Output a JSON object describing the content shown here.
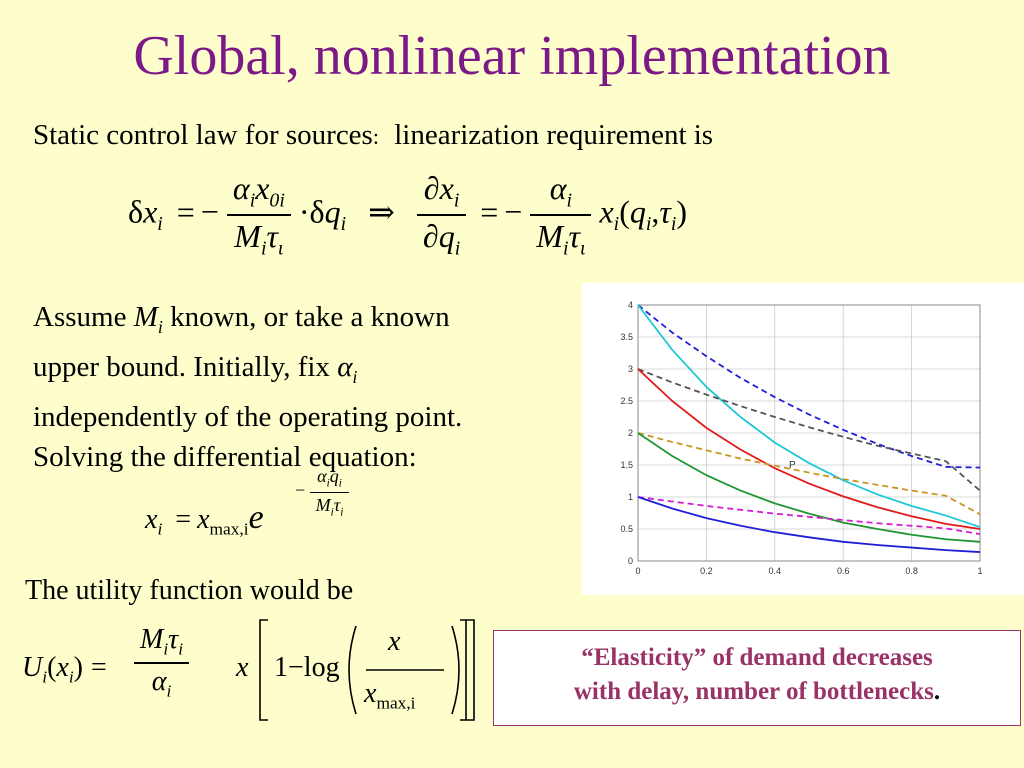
{
  "title": "Global, nonlinear implementation",
  "subtitle_left": "Static control law for sources",
  "subtitle_colon": ":",
  "subtitle_right": "linearization requirement is",
  "eq1": {
    "lhs_delta": "δ",
    "x": "x",
    "i": "i",
    "eq": "=",
    "minus": "−",
    "alpha": "α",
    "x0": "x",
    "zero_i": "0i",
    "M": "M",
    "tau": "τ",
    "tau_sub": "ι",
    "dot": "·",
    "delta_q": "δ",
    "q": "q",
    "implies": "⇒",
    "partial": "∂",
    "paren_open": "(",
    "comma": ",",
    "paren_close": ")"
  },
  "para": {
    "l1_a": "Assume ",
    "l1_M": "M",
    "l1_i": "i",
    "l1_b": " known, or take a known",
    "l2_a": "upper bound. Initially, fix ",
    "l2_alpha": "α",
    "l2_i": "i",
    "l3": "independently of the operating point.",
    "l4": "Solving the differential equation:"
  },
  "eq2": {
    "x": "x",
    "i": "i",
    "eq": "=",
    "xmax": "x",
    "max_i": "max,i",
    "e": "e",
    "minus": "−",
    "alpha_i": "α",
    "q_i": "q",
    "M_i": "M",
    "tau_i": "τ"
  },
  "utility_label": "The utility function would be",
  "eq3": {
    "U": "U",
    "i": "i",
    "paren_open": "(",
    "x": "x",
    "paren_close": ")",
    "eq": "=",
    "M": "M",
    "tau": "τ",
    "alpha": "α",
    "one_minus": "1−",
    "log": "log",
    "x_num": "x",
    "x_max": "x",
    "max_i": "max,i"
  },
  "callout": {
    "line1": "“Elasticity” of demand decreases",
    "line2": "with delay, number of bottlenecks",
    "period": "."
  },
  "colors": {
    "title": "#7b1a87",
    "callout": "#993366",
    "background": "#fefdcc"
  },
  "chart_data": {
    "type": "line",
    "xlim": [
      0,
      1
    ],
    "ylim": [
      0,
      4
    ],
    "x_ticks": [
      "0",
      "0.2",
      "0.4",
      "0.6",
      "0.8",
      "1"
    ],
    "y_ticks": [
      "0",
      "0.5",
      "1",
      "1.5",
      "2",
      "2.5",
      "3",
      "3.5",
      "4"
    ],
    "grid": true,
    "annotation": {
      "text": "P",
      "x": 0.43,
      "y": 1.39
    },
    "series": [
      {
        "color": "#1f1fd6",
        "dash": "6,4",
        "x": [
          0,
          0.1,
          0.2,
          0.3,
          0.4,
          0.5,
          0.6,
          0.7,
          0.8,
          0.9,
          1
        ],
        "y": [
          4,
          3.57,
          3.2,
          2.86,
          2.56,
          2.29,
          2.05,
          1.83,
          1.64,
          1.47,
          1.46
        ]
      },
      {
        "color": "#1ec8d6",
        "dash": "",
        "x": [
          0,
          0.1,
          0.2,
          0.3,
          0.4,
          0.5,
          0.6,
          0.7,
          0.8,
          0.9,
          1
        ],
        "y": [
          4,
          3.3,
          2.72,
          2.25,
          1.85,
          1.53,
          1.26,
          1.04,
          0.86,
          0.71,
          0.53
        ]
      },
      {
        "color": "#555555",
        "dash": "6,4",
        "x": [
          0,
          0.1,
          0.2,
          0.3,
          0.4,
          0.5,
          0.6,
          0.7,
          0.8,
          0.9,
          1
        ],
        "y": [
          3,
          2.79,
          2.6,
          2.42,
          2.25,
          2.09,
          1.94,
          1.8,
          1.68,
          1.56,
          1.1
        ]
      },
      {
        "color": "#e01b1b",
        "dash": "",
        "x": [
          0,
          0.1,
          0.2,
          0.3,
          0.4,
          0.5,
          0.6,
          0.7,
          0.8,
          0.9,
          1
        ],
        "y": [
          3,
          2.5,
          2.08,
          1.74,
          1.45,
          1.21,
          1.01,
          0.84,
          0.7,
          0.58,
          0.5
        ]
      },
      {
        "color": "#c8961e",
        "dash": "6,4",
        "x": [
          0,
          0.1,
          0.2,
          0.3,
          0.4,
          0.5,
          0.6,
          0.7,
          0.8,
          0.9,
          1
        ],
        "y": [
          2,
          1.86,
          1.73,
          1.6,
          1.49,
          1.38,
          1.28,
          1.19,
          1.1,
          1.02,
          0.73
        ]
      },
      {
        "color": "#1e9632",
        "dash": "",
        "x": [
          0,
          0.1,
          0.2,
          0.3,
          0.4,
          0.5,
          0.6,
          0.7,
          0.8,
          0.9,
          1
        ],
        "y": [
          2,
          1.64,
          1.34,
          1.1,
          0.9,
          0.74,
          0.6,
          0.5,
          0.41,
          0.34,
          0.3
        ]
      },
      {
        "color": "#d21ed2",
        "dash": "6,4",
        "x": [
          0,
          0.1,
          0.2,
          0.3,
          0.4,
          0.5,
          0.6,
          0.7,
          0.8,
          0.9,
          1
        ],
        "y": [
          1,
          0.93,
          0.86,
          0.8,
          0.74,
          0.69,
          0.64,
          0.59,
          0.55,
          0.51,
          0.42
        ]
      },
      {
        "color": "#1f1fd6",
        "dash": "",
        "x": [
          0,
          0.1,
          0.2,
          0.3,
          0.4,
          0.5,
          0.6,
          0.7,
          0.8,
          0.9,
          1
        ],
        "y": [
          1,
          0.82,
          0.67,
          0.55,
          0.45,
          0.37,
          0.3,
          0.25,
          0.21,
          0.17,
          0.14
        ]
      }
    ]
  }
}
